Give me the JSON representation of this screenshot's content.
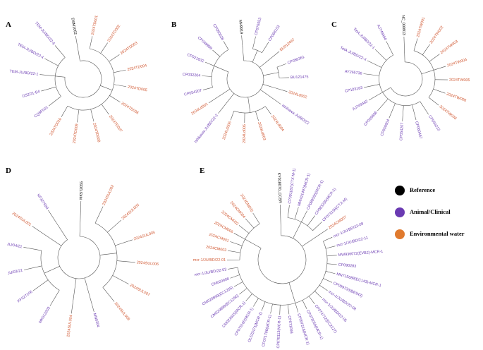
{
  "panels": [
    {
      "letter": "A",
      "leaves": [
        {
          "label": "DSM1062",
          "color": "#000000"
        },
        {
          "label": "2024TD001",
          "color": "#d0552e"
        },
        {
          "label": "2024TD002",
          "color": "#d0552e"
        },
        {
          "label": "2024TD003",
          "color": "#d0552e"
        },
        {
          "label": "2024TD004",
          "color": "#d0552e"
        },
        {
          "label": "2024TD005",
          "color": "#d0552e"
        },
        {
          "label": "2024TD006",
          "color": "#d0552e"
        },
        {
          "label": "2024TD007",
          "color": "#d0552e"
        },
        {
          "label": "2024TD008",
          "color": "#d0552e"
        },
        {
          "label": "2024TD009",
          "color": "#d0552e"
        },
        {
          "label": "2024TD010",
          "color": "#d0552e"
        },
        {
          "label": "CQ9F001",
          "color": "#6a3ab2"
        },
        {
          "label": "DS2D1-B4",
          "color": "#6a3ab2"
        },
        {
          "label": "TEM-JU/BD/22-1",
          "color": "#6a3ab2"
        },
        {
          "label": "TEM-JU/BD/22-4",
          "color": "#6a3ab2"
        },
        {
          "label": "TEM-JU/BD/22-6",
          "color": "#6a3ab2"
        }
      ]
    },
    {
      "letter": "B",
      "leaves": [
        {
          "label": "MH9919",
          "color": "#000000"
        },
        {
          "label": "CP076553",
          "color": "#6a3ab2"
        },
        {
          "label": "CP068153",
          "color": "#6a3ab2"
        },
        {
          "label": "BU012467",
          "color": "#d0552e"
        },
        {
          "label": "CP086361",
          "color": "#6a3ab2"
        },
        {
          "label": "BU121475",
          "color": "#6a3ab2"
        },
        {
          "label": "2024Ld002",
          "color": "#d0552e"
        },
        {
          "label": "Ishikawa-JU/BD/22",
          "color": "#6a3ab2"
        },
        {
          "label": "2024Ld004",
          "color": "#d0552e"
        },
        {
          "label": "2024Ld003",
          "color": "#d0552e"
        },
        {
          "label": "2024Ld005",
          "color": "#d0552e"
        },
        {
          "label": "2024Ld006",
          "color": "#d0552e"
        },
        {
          "label": "Ishikawa-JU/BD/22-2",
          "color": "#6a3ab2"
        },
        {
          "label": "2024Ld001",
          "color": "#d0552e"
        },
        {
          "label": "CP054207",
          "color": "#6a3ab2"
        },
        {
          "label": "CP032204",
          "color": "#6a3ab2"
        },
        {
          "label": "CP021632",
          "color": "#6a3ab2"
        },
        {
          "label": "CP049959",
          "color": "#6a3ab2"
        },
        {
          "label": "CP050028",
          "color": "#6a3ab2"
        }
      ]
    },
    {
      "letter": "C",
      "leaves": [
        {
          "label": "NC_000913",
          "color": "#000000"
        },
        {
          "label": "2024TW001",
          "color": "#d0552e"
        },
        {
          "label": "2024TW002",
          "color": "#d0552e"
        },
        {
          "label": "2024TW003",
          "color": "#d0552e"
        },
        {
          "label": "2024TW004",
          "color": "#d0552e"
        },
        {
          "label": "2024TW005",
          "color": "#d0552e"
        },
        {
          "label": "2024TW006",
          "color": "#d0552e"
        },
        {
          "label": "2024TW008",
          "color": "#d0552e"
        },
        {
          "label": "CP054212",
          "color": "#6a3ab2"
        },
        {
          "label": "CP060467",
          "color": "#6a3ab2"
        },
        {
          "label": "CP054207",
          "color": "#6a3ab2"
        },
        {
          "label": "CP059604",
          "color": "#6a3ab2"
        },
        {
          "label": "CP059606",
          "color": "#6a3ab2"
        },
        {
          "label": "AJ749462",
          "color": "#6a3ab2"
        },
        {
          "label": "CP103163",
          "color": "#6a3ab2"
        },
        {
          "label": "AY265736",
          "color": "#6a3ab2"
        },
        {
          "label": "TetA-JU/BD/22-4",
          "color": "#6a3ab2"
        },
        {
          "label": "TetA-JU/BD/22-1",
          "color": "#6a3ab2"
        },
        {
          "label": "AJ749464",
          "color": "#6a3ab2"
        }
      ]
    },
    {
      "letter": "D",
      "leaves": [
        {
          "label": "MK572055",
          "color": "#000000"
        },
        {
          "label": "2024SUL002",
          "color": "#d0552e"
        },
        {
          "label": "2024SUL003",
          "color": "#d0552e"
        },
        {
          "label": "2024SUL005",
          "color": "#d0552e"
        },
        {
          "label": "2024SUL006",
          "color": "#d0552e"
        },
        {
          "label": "2024SUL007",
          "color": "#d0552e"
        },
        {
          "label": "2024SUL008",
          "color": "#d0552e"
        },
        {
          "label": "MN0304",
          "color": "#6a3ab2"
        },
        {
          "label": "2024SUL004",
          "color": "#d0552e"
        },
        {
          "label": "MK013203",
          "color": "#6a3ab2"
        },
        {
          "label": "KF327106",
          "color": "#6a3ab2"
        },
        {
          "label": "JU/03/21",
          "color": "#6a3ab2"
        },
        {
          "label": "JU/04/21",
          "color": "#6a3ab2"
        },
        {
          "label": "2024SUL001",
          "color": "#d0552e"
        },
        {
          "label": "KF327690",
          "color": "#6a3ab2"
        }
      ]
    },
    {
      "letter": "E",
      "leaves": [
        {
          "label": "KY018070_CCSR",
          "color": "#000000"
        },
        {
          "label": "CP091187(CTX-M-1)",
          "color": "#6a3ab2"
        },
        {
          "label": "MW421497(MCR-1)",
          "color": "#6a3ab2"
        },
        {
          "label": "CP080556(MCR-1)",
          "color": "#6a3ab2"
        },
        {
          "label": "CP083239(MCR-1)",
          "color": "#6a3ab2"
        },
        {
          "label": "CP073158(CTX-M)",
          "color": "#6a3ab2"
        },
        {
          "label": "2024CM007",
          "color": "#d0552e"
        },
        {
          "label": "mcr-1/JU/BD/22-09",
          "color": "#6a3ab2"
        },
        {
          "label": "mcr-1/JU/BD/22-11",
          "color": "#6a3ab2"
        },
        {
          "label": "MW936072(EVB2)-MCR-1",
          "color": "#6a3ab2"
        },
        {
          "label": "CP090283",
          "color": "#6a3ab2"
        },
        {
          "label": "MN715688(EC143)-MCR-1",
          "color": "#6a3ab2"
        },
        {
          "label": "CP099733(BE943)",
          "color": "#6a3ab2"
        },
        {
          "label": "mcr-1/JU/BD/22-08",
          "color": "#6a3ab2"
        },
        {
          "label": "mcr-1/JU/BD/22-05",
          "color": "#6a3ab2"
        },
        {
          "label": "CP074712(EC2127)",
          "color": "#6a3ab2"
        },
        {
          "label": "CP073056(MCR-1)",
          "color": "#6a3ab2"
        },
        {
          "label": "CP097218(MCR-1)",
          "color": "#6a3ab2"
        },
        {
          "label": "CP071098",
          "color": "#6a3ab2"
        },
        {
          "label": "CP078113(MCR-1)",
          "color": "#6a3ab2"
        },
        {
          "label": "CP071786(MCR-1)",
          "color": "#6a3ab2"
        },
        {
          "label": "OL522471(MCR-1)",
          "color": "#6a3ab2"
        },
        {
          "label": "CP075160(MCR-1)",
          "color": "#6a3ab2"
        },
        {
          "label": "CM023915(MCR-1)",
          "color": "#6a3ab2"
        },
        {
          "label": "CM020899(EC1256)",
          "color": "#6a3ab2"
        },
        {
          "label": "CM020899(EC1255)",
          "color": "#6a3ab2"
        },
        {
          "label": "CM020908",
          "color": "#6a3ab2"
        },
        {
          "label": "mcr-1/JU/BD/22-03",
          "color": "#6a3ab2"
        },
        {
          "label": "mcr-1/JU/BD/22-01",
          "color": "#d0552e"
        },
        {
          "label": "2024CM003",
          "color": "#d0552e"
        },
        {
          "label": "2024CM001",
          "color": "#d0552e"
        },
        {
          "label": "2024CM006",
          "color": "#d0552e"
        },
        {
          "label": "2024CM002",
          "color": "#d0552e"
        },
        {
          "label": "2024CM004",
          "color": "#d0552e"
        },
        {
          "label": "2024CM005",
          "color": "#d0552e"
        }
      ]
    }
  ],
  "legend": {
    "items": [
      {
        "label": "Reference",
        "color": "#000000"
      },
      {
        "label": "Animal/Clinical",
        "color": "#6a3ab2"
      },
      {
        "label": "Environmental water",
        "color": "#e07a2e"
      }
    ]
  }
}
